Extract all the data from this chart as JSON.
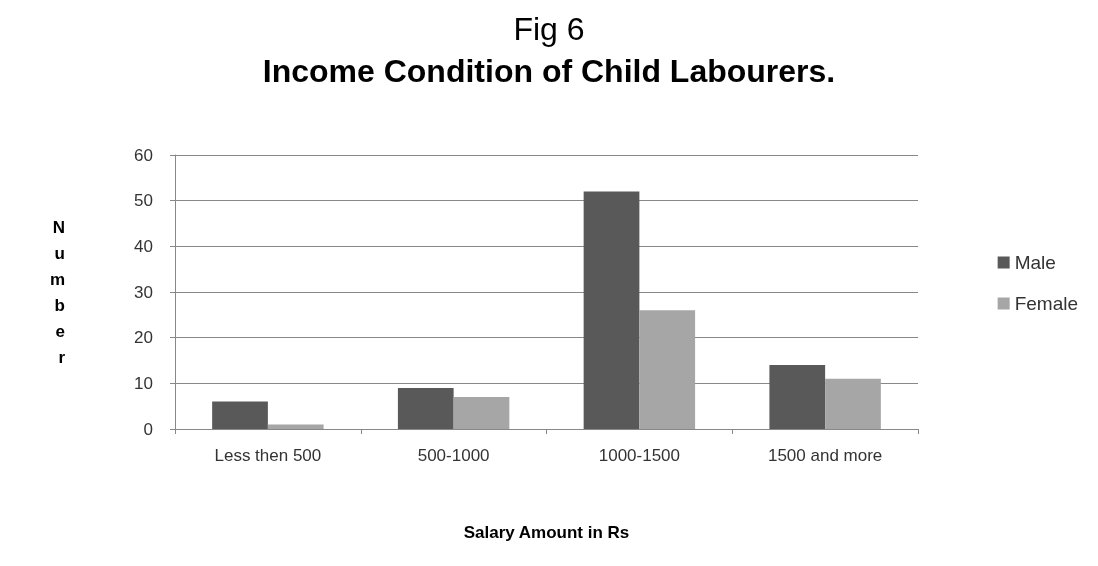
{
  "chart_data": {
    "type": "bar",
    "title": "Fig 6",
    "subtitle": "Income Condition of Child Labourers.",
    "xlabel": "Salary Amount in Rs",
    "ylabel": "Number",
    "categories": [
      "Less then 500",
      "500-1000",
      "1000-1500",
      "1500 and more"
    ],
    "series": [
      {
        "name": "Male",
        "color": "#595959",
        "values": [
          6,
          9,
          52,
          14
        ]
      },
      {
        "name": "Female",
        "color": "#a6a6a6",
        "values": [
          1,
          7,
          26,
          11
        ]
      }
    ],
    "ylim": [
      0,
      60
    ],
    "yticks": [
      0,
      10,
      20,
      30,
      40,
      50,
      60
    ],
    "grid": "y",
    "legend": "right"
  }
}
